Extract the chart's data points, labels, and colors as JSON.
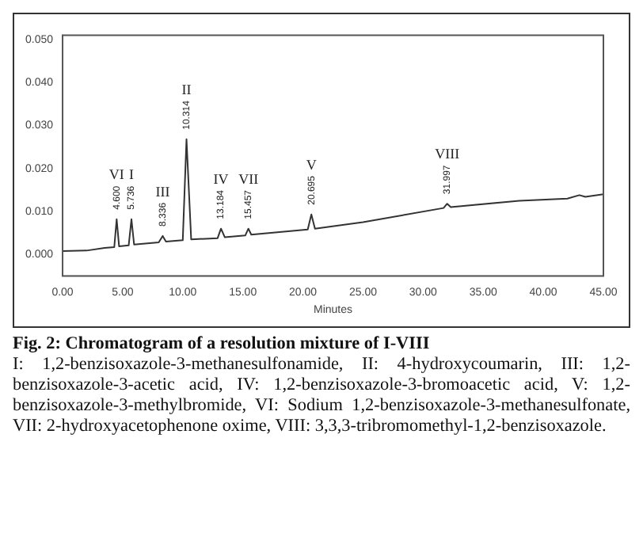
{
  "chart_data": {
    "type": "line",
    "title": "Fig. 2: Chromatogram of a resolution mixture of I-VIII",
    "xlabel": "Minutes",
    "x": [
      0,
      2,
      3.5,
      4.3,
      4.5,
      4.7,
      5.5,
      5.73,
      5.95,
      8.0,
      8.33,
      8.6,
      10.0,
      10.31,
      10.7,
      12.9,
      13.18,
      13.5,
      15.2,
      15.46,
      15.7,
      20.4,
      20.7,
      21.0,
      25,
      31.7,
      32.0,
      32.3,
      38,
      42,
      43,
      43.5,
      45
    ],
    "series": [
      {
        "color": "#333333",
        "values": [
          0.0008,
          0.0009,
          0.0015,
          0.0017,
          0.0082,
          0.0019,
          0.0021,
          0.0082,
          0.0023,
          0.0028,
          0.0043,
          0.003,
          0.0033,
          0.0268,
          0.0035,
          0.0038,
          0.006,
          0.004,
          0.0044,
          0.006,
          0.0046,
          0.0058,
          0.0093,
          0.006,
          0.0075,
          0.0108,
          0.0118,
          0.011,
          0.0125,
          0.013,
          0.0138,
          0.0134,
          0.014
        ]
      }
    ],
    "xlim": [
      0,
      45
    ],
    "ylim": [
      -0.005,
      0.051
    ],
    "xticks": [
      {
        "value": 0,
        "label": "0.00"
      },
      {
        "value": 5,
        "label": "5.00"
      },
      {
        "value": 10,
        "label": "10.00"
      },
      {
        "value": 15,
        "label": "15.00"
      },
      {
        "value": 20,
        "label": "20.00"
      },
      {
        "value": 25,
        "label": "25.00"
      },
      {
        "value": 30,
        "label": "30.00"
      },
      {
        "value": 35,
        "label": "35.00"
      },
      {
        "value": 40,
        "label": "40.00"
      },
      {
        "value": 45,
        "label": "45.00"
      }
    ],
    "yticks": [
      {
        "value": 0,
        "label": "0.000"
      },
      {
        "value": 0.01,
        "label": "0.010"
      },
      {
        "value": 0.02,
        "label": "0.020"
      },
      {
        "value": 0.03,
        "label": "0.030"
      },
      {
        "value": 0.04,
        "label": "0.040"
      },
      {
        "value": 0.05,
        "label": "0.050"
      }
    ],
    "grid": false,
    "legend": false,
    "marker": "none",
    "line_style": "solid",
    "annotations": [
      {
        "text": "VI",
        "x": 4.5,
        "y": 0.0082
      },
      {
        "text": "4.600",
        "x": 4.5,
        "y": 0.0082
      },
      {
        "text": "I",
        "x": 5.73,
        "y": 0.0082
      },
      {
        "text": "5.736",
        "x": 5.73,
        "y": 0.0082
      },
      {
        "text": "III",
        "x": 8.33,
        "y": 0.0043
      },
      {
        "text": "8.336",
        "x": 8.33,
        "y": 0.0043
      },
      {
        "text": "II",
        "x": 10.31,
        "y": 0.0268
      },
      {
        "text": "10.314",
        "x": 10.31,
        "y": 0.0268
      },
      {
        "text": "IV",
        "x": 13.18,
        "y": 0.006
      },
      {
        "text": "13.184",
        "x": 13.18,
        "y": 0.006
      },
      {
        "text": "VII",
        "x": 15.46,
        "y": 0.006
      },
      {
        "text": "15.457",
        "x": 15.46,
        "y": 0.006
      },
      {
        "text": "V",
        "x": 20.7,
        "y": 0.0093
      },
      {
        "text": "20.695",
        "x": 20.7,
        "y": 0.0093
      },
      {
        "text": "VIII",
        "x": 32.0,
        "y": 0.0118
      },
      {
        "text": "31.997",
        "x": 32.0,
        "y": 0.0118
      },
      "I: 1,2-benzisoxazole-3-methanesulfonamide, II: 4-hydroxycoumarin, III: 1,2-benzisoxazole-3-acetic acid, IV: 1,2-benzisoxazole-3-bromoacetic acid, V: 1,2-benzisoxazole-3-methylbromide, VI: Sodium 1,2-benzisoxazole-3-methanesulfonate, VII: 2-hydroxyacetophenone oxime, VIII: 3,3,3-tribromomethyl-1,2-benzisoxazole."
    ]
  }
}
